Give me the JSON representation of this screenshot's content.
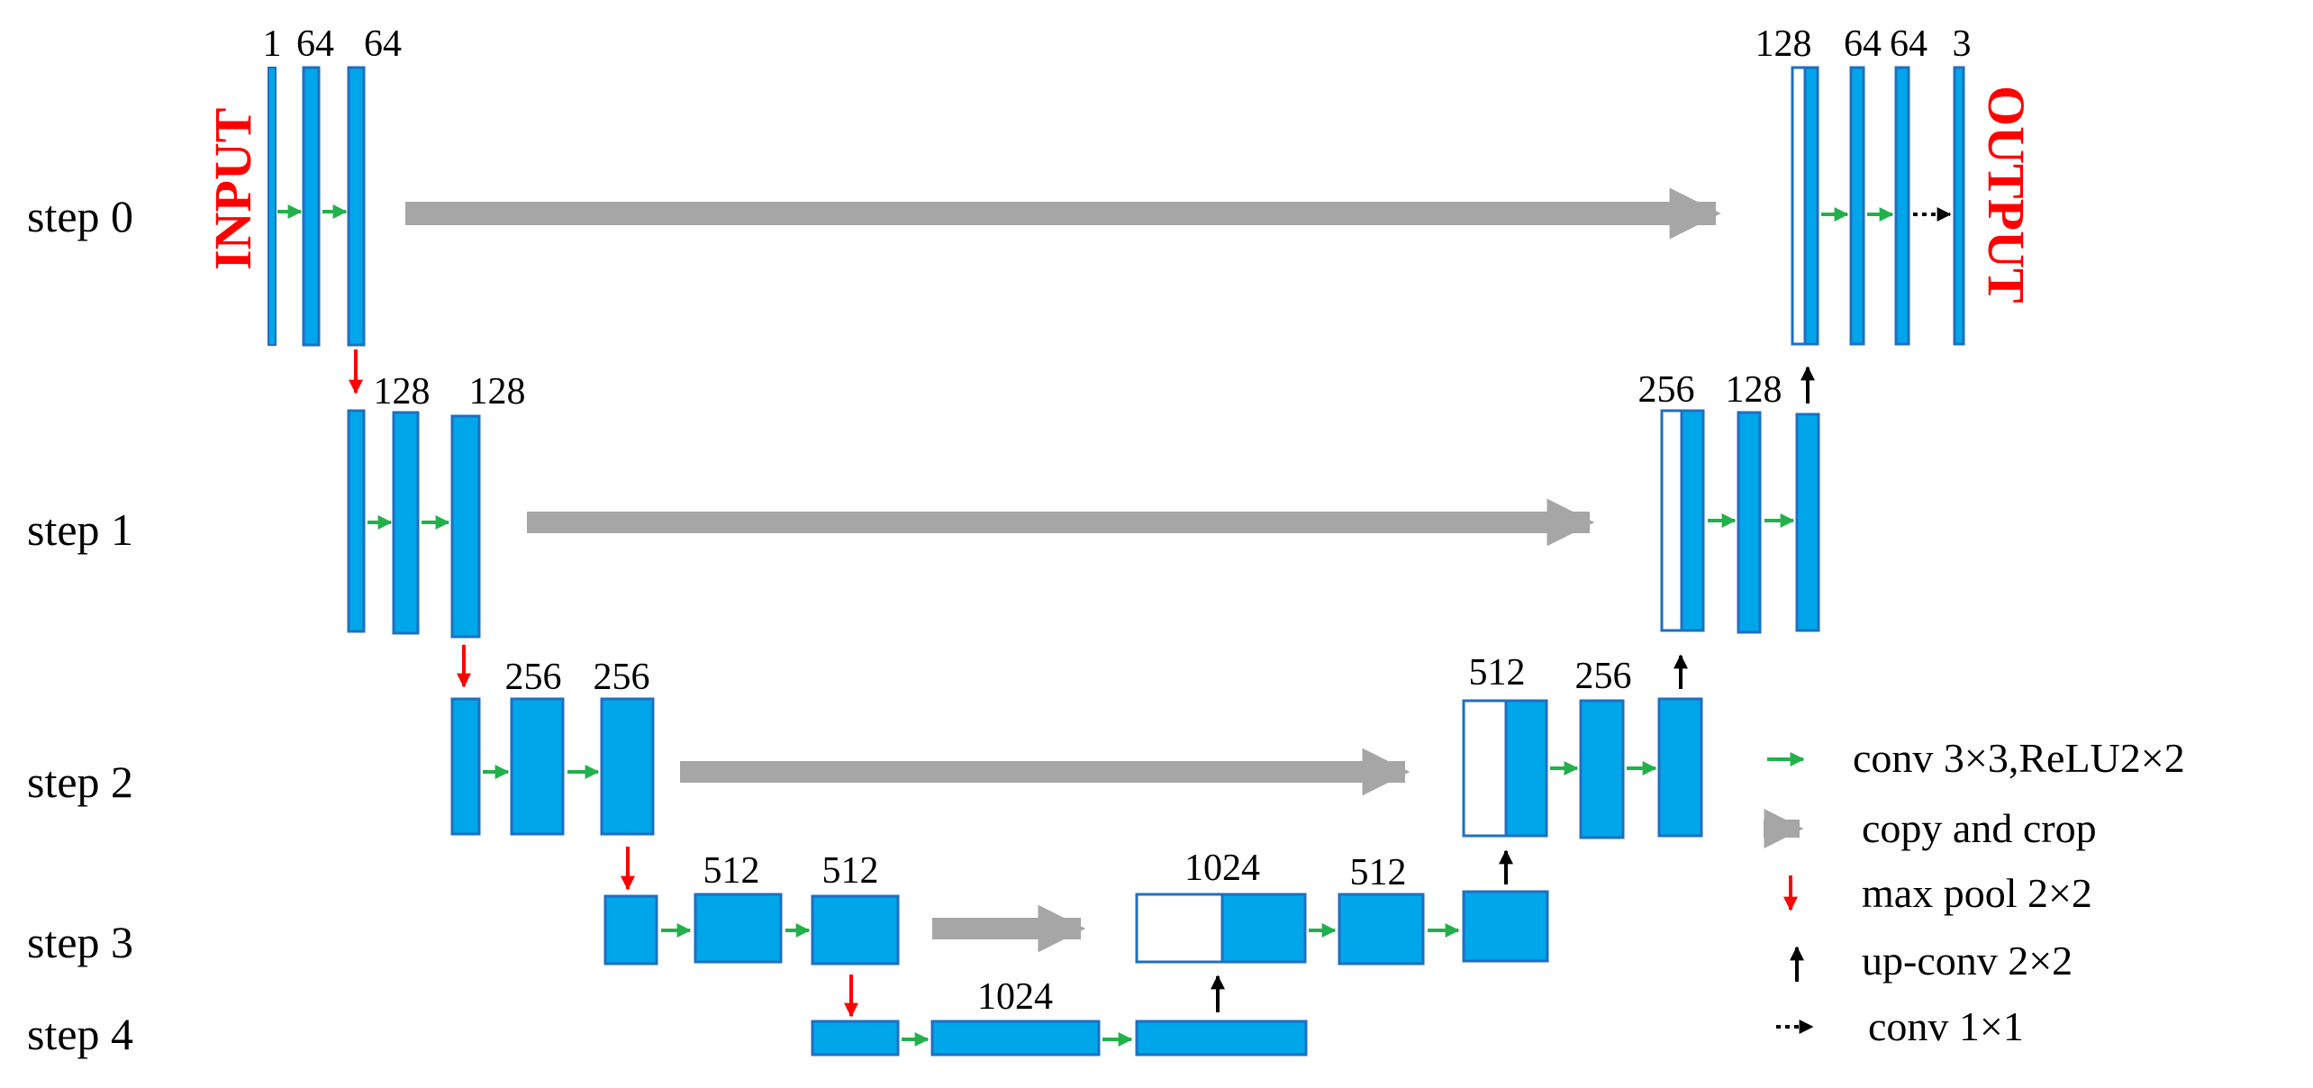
{
  "steps": [
    "step 0",
    "step 1",
    "step 2",
    "step 3",
    "step 4"
  ],
  "io": {
    "input": "INPUT",
    "output": "OUTPUT"
  },
  "channels": {
    "step0_in": "1",
    "step0_c1": "64",
    "step0_c2": "64",
    "step0_up": "128",
    "step0_up_c1": "64",
    "step0_up_c2": "64",
    "step0_out": "3",
    "step1_c1": "128",
    "step1_c2": "128",
    "step1_up": "256",
    "step1_up_c1": "128",
    "step2_c1": "256",
    "step2_c2": "256",
    "step2_up": "512",
    "step2_up_c1": "256",
    "step3_c1": "512",
    "step3_c2": "512",
    "step3_up": "1024",
    "step3_up_c1": "512",
    "step4_c1": "1024"
  },
  "legend": {
    "conv": "conv 3×3,ReLU2×2",
    "copy": "copy and crop",
    "pool": "max pool 2×2",
    "upconv": "up-conv 2×2",
    "conv1": "conv 1×1"
  },
  "colors": {
    "block_fill": "#00a6ea",
    "block_stroke": "#1f6fc0",
    "copy_arrow": "#a6a6a6",
    "conv_arrow": "#22b04b",
    "pool_arrow": "#ff0000",
    "upconv_arrow": "#000000",
    "io_text": "#ff0000"
  }
}
